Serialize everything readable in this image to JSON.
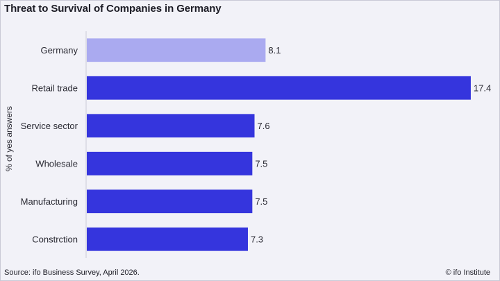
{
  "title": "Threat to Survival of Companies in Germany",
  "footer": {
    "source": "Source:  ifo Business Survey,  April 2026.",
    "credit": "© ifo Institute"
  },
  "colors": {
    "highlight": "#aaaaf0",
    "bar": "#3535dd",
    "axis": "#c9c9d6"
  },
  "chart_data": {
    "type": "bar",
    "orientation": "horizontal",
    "title": "Threat to Survival of Companies in Germany",
    "ylabel": "% of yes answers",
    "xlabel": "",
    "categories": [
      "Germany",
      "Retail trade",
      "Service sector",
      "Wholesale",
      "Manufacturing",
      "Constrction"
    ],
    "values": [
      8.1,
      17.4,
      7.6,
      7.5,
      7.5,
      7.3
    ],
    "value_labels": [
      "8.1",
      "17.4",
      "7.6",
      "7.5",
      "7.5",
      "7.3"
    ],
    "highlight_index": 0,
    "xlim": [
      0,
      18
    ],
    "grid": false
  }
}
